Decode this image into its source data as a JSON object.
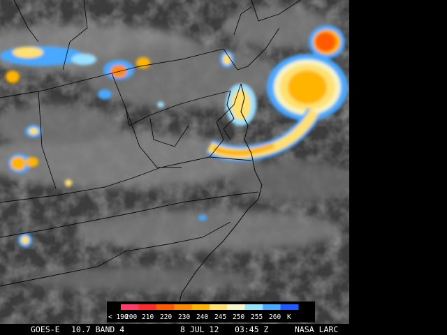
{
  "legend": {
    "ticks": [
      "< 190",
      "200",
      "210",
      "220",
      "230",
      "240",
      "245",
      "250",
      "255",
      "260",
      "K"
    ],
    "colors": [
      "#ff3b6b",
      "#ff2a2a",
      "#ff5a00",
      "#ff8a00",
      "#ffb400",
      "#ffe070",
      "#f4f4c8",
      "#9ae0ff",
      "#4aa8ff",
      "#1e5aff"
    ]
  },
  "footer": {
    "satellite": "GOES-E",
    "band": "10.7 BAND 4",
    "date": "8 JUL 12",
    "time": "03:45 Z",
    "credit": "NASA LARC"
  },
  "map": {
    "region": "Mid-Atlantic / Eastern United States",
    "image_type": "infrared cloud-top temperature"
  }
}
